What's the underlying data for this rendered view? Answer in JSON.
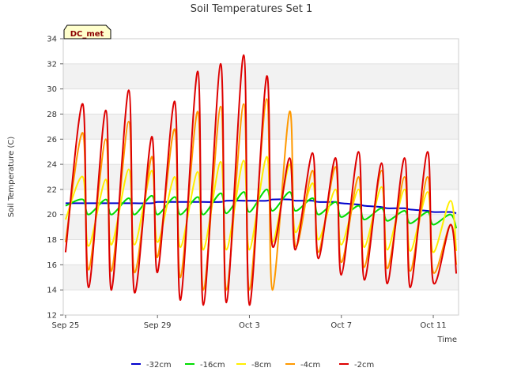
{
  "chart_data": {
    "type": "line",
    "title": "Soil Temperatures Set 1",
    "xlabel": "Time",
    "ylabel": "Soil Temperature (C)",
    "badge": "DC_met",
    "ylim": [
      12,
      34
    ],
    "yticks": [
      12,
      14,
      16,
      18,
      20,
      22,
      24,
      26,
      28,
      30,
      32,
      34
    ],
    "xlim_days": [
      -0.1,
      17.1
    ],
    "xticks": [
      {
        "label": "Sep 25",
        "day": 0
      },
      {
        "label": "Sep 29",
        "day": 4
      },
      {
        "label": "Oct 3",
        "day": 8
      },
      {
        "label": "Oct 7",
        "day": 12
      },
      {
        "label": "Oct 11",
        "day": 16
      }
    ],
    "grid": true,
    "legend_position": "bottom",
    "x_days": [
      0,
      0.75,
      1,
      1.75,
      2,
      2.75,
      3,
      3.75,
      4,
      4.75,
      5,
      5.75,
      6,
      6.75,
      7,
      7.75,
      8,
      8.75,
      9,
      9.75,
      10,
      10.75,
      11,
      11.75,
      12,
      12.75,
      13,
      13.75,
      14,
      14.75,
      15,
      15.75,
      16,
      16.75,
      17
    ],
    "series": [
      {
        "name": "-32cm",
        "color": "#0000cc",
        "values": [
          20.9,
          20.9,
          20.9,
          20.9,
          20.9,
          20.9,
          20.9,
          20.9,
          21.0,
          21.0,
          21.0,
          21.0,
          21.0,
          21.0,
          21.1,
          21.1,
          21.1,
          21.1,
          21.2,
          21.2,
          21.1,
          21.1,
          21.0,
          21.0,
          20.9,
          20.8,
          20.7,
          20.6,
          20.5,
          20.5,
          20.4,
          20.3,
          20.2,
          20.2,
          20.1
        ]
      },
      {
        "name": "-16cm",
        "color": "#00dd00",
        "values": [
          20.7,
          21.2,
          20.0,
          21.2,
          20.0,
          21.3,
          20.0,
          21.5,
          20.0,
          21.4,
          20.0,
          21.4,
          20.0,
          21.7,
          20.1,
          21.8,
          20.2,
          22.0,
          20.3,
          21.8,
          20.3,
          21.3,
          20.0,
          21.0,
          19.8,
          20.7,
          19.6,
          20.5,
          19.5,
          20.3,
          19.3,
          20.2,
          19.2,
          20.0,
          18.9
        ]
      },
      {
        "name": "-8cm",
        "color": "#ffee00",
        "values": [
          19.6,
          23.0,
          17.5,
          22.8,
          17.6,
          23.6,
          17.6,
          23.5,
          17.8,
          23.0,
          17.4,
          23.4,
          17.2,
          24.2,
          17.2,
          24.3,
          17.2,
          24.6,
          17.8,
          24.0,
          18.6,
          22.5,
          18.0,
          22.0,
          17.6,
          22.0,
          17.4,
          22.2,
          17.2,
          22.0,
          17.1,
          21.8,
          17.0,
          21.1,
          17.1
        ]
      },
      {
        "name": "-4cm",
        "color": "#ff9900",
        "values": [
          17.8,
          26.5,
          15.6,
          26.0,
          15.5,
          27.4,
          15.4,
          24.6,
          16.6,
          26.8,
          15.0,
          28.2,
          14.0,
          28.6,
          14.0,
          28.8,
          14.0,
          29.2,
          14.0,
          28.2,
          17.5,
          23.5,
          17.0,
          23.8,
          16.2,
          23.0,
          15.8,
          23.5,
          15.7,
          23.0,
          15.5,
          23.0,
          15.4,
          19.2,
          16.0
        ]
      },
      {
        "name": "-2cm",
        "color": "#dd0000",
        "values": [
          17.0,
          28.8,
          14.2,
          28.3,
          14.0,
          29.9,
          13.8,
          26.2,
          15.4,
          29.0,
          13.2,
          31.4,
          12.8,
          32.0,
          13.0,
          32.7,
          12.8,
          31.0,
          17.5,
          24.5,
          17.2,
          24.9,
          16.5,
          24.5,
          15.2,
          25.0,
          14.8,
          24.1,
          14.5,
          24.5,
          14.2,
          25.0,
          14.6,
          19.2,
          15.3
        ]
      }
    ]
  }
}
